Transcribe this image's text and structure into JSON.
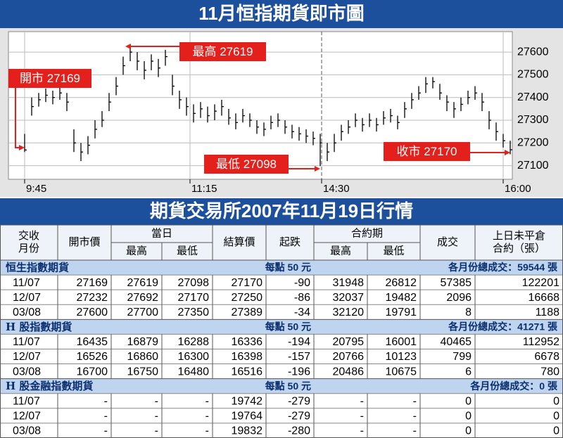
{
  "chart_data": {
    "type": "hlc",
    "title": "11月恒指期貨即市圖",
    "values": [
      27169,
      27360,
      27390,
      27410,
      27400,
      27420,
      27380,
      27200,
      27160,
      27190,
      27260,
      27300,
      27380,
      27450,
      27540,
      27600,
      27560,
      27520,
      27560,
      27530,
      27580,
      27450,
      27390,
      27360,
      27330,
      27350,
      27320,
      27340,
      27360,
      27310,
      27290,
      27320,
      27300,
      27270,
      27260,
      27290,
      27300,
      27270,
      27250,
      27240,
      27230,
      27220,
      27200,
      27160,
      27200,
      27250,
      27270,
      27300,
      27280,
      27300,
      27280,
      27310,
      27320,
      27290,
      27350,
      27390,
      27420,
      27460,
      27470,
      27420,
      27380,
      27350,
      27370,
      27400,
      27420,
      27380,
      27300,
      27250,
      27210,
      27170
    ],
    "high": [
      27240,
      27400,
      27420,
      27440,
      27430,
      27450,
      27420,
      27260,
      27200,
      27230,
      27300,
      27340,
      27420,
      27490,
      27580,
      27619,
      27600,
      27560,
      27590,
      27570,
      27610,
      27500,
      27430,
      27400,
      27370,
      27380,
      27360,
      27370,
      27390,
      27350,
      27330,
      27350,
      27330,
      27300,
      27290,
      27320,
      27330,
      27300,
      27280,
      27270,
      27260,
      27250,
      27240,
      27200,
      27240,
      27280,
      27300,
      27330,
      27310,
      27330,
      27310,
      27340,
      27350,
      27320,
      27380,
      27420,
      27450,
      27490,
      27490,
      27460,
      27410,
      27380,
      27400,
      27430,
      27450,
      27420,
      27340,
      27290,
      27240,
      27210
    ],
    "low": [
      27160,
      27320,
      27360,
      27380,
      27370,
      27390,
      27340,
      27160,
      27120,
      27150,
      27220,
      27270,
      27340,
      27410,
      27500,
      27560,
      27520,
      27480,
      27520,
      27490,
      27540,
      27410,
      27350,
      27320,
      27290,
      27310,
      27290,
      27300,
      27320,
      27280,
      27260,
      27290,
      27270,
      27240,
      27230,
      27260,
      27270,
      27240,
      27220,
      27210,
      27200,
      27190,
      27098,
      27120,
      27160,
      27210,
      27240,
      27270,
      27250,
      27270,
      27250,
      27280,
      27290,
      27260,
      27310,
      27350,
      27390,
      27420,
      27440,
      27390,
      27340,
      27310,
      27340,
      27370,
      27390,
      27340,
      27260,
      27210,
      27180,
      27150
    ],
    "color": "#000000",
    "ylim": [
      27040,
      27690
    ],
    "yticks": [
      27100,
      27200,
      27300,
      27400,
      27500,
      27600
    ],
    "xticks": [
      {
        "value": 0,
        "label": "9:45"
      },
      {
        "value": 23.5,
        "label": "11:15"
      },
      {
        "value": 42.2,
        "label": "14:30"
      },
      {
        "value": 68,
        "label": "16:00"
      }
    ],
    "grid": true,
    "annotations": [
      {
        "text": "開市 27169"
      },
      {
        "text": "最高 27619"
      },
      {
        "text": "最低 27098"
      },
      {
        "text": "收市 27170"
      }
    ]
  },
  "table": {
    "title": "期貨交易所2007年11月19日行情",
    "header": {
      "month": [
        "交收",
        "月份"
      ],
      "open": "開市價",
      "day": "當日",
      "day_high": "最高",
      "day_low": "最低",
      "settle": "結算價",
      "change": "起跌",
      "contract": "合約期",
      "c_high": "最高",
      "c_low": "最低",
      "volume": "成交",
      "oi": [
        "上日未平倉",
        "合約（張）"
      ]
    },
    "sections": [
      {
        "name": "恒生指數期貨",
        "per_point": "每點 50 元",
        "total": "各月份總成交：59544 張",
        "rows": [
          [
            "11/07",
            "27169",
            "27619",
            "27098",
            "27170",
            "-90",
            "31948",
            "26812",
            "57385",
            "122201"
          ],
          [
            "12/07",
            "27232",
            "27692",
            "27170",
            "27250",
            "-86",
            "32037",
            "19482",
            "2096",
            "16668"
          ],
          [
            "03/08",
            "27600",
            "27700",
            "27350",
            "27389",
            "-34",
            "32120",
            "19791",
            "8",
            "1188"
          ]
        ]
      },
      {
        "name": "H 股指數期貨",
        "per_point": "每點 50 元",
        "total": "各月份總成交：41271 張",
        "rows": [
          [
            "11/07",
            "16435",
            "16879",
            "16288",
            "16336",
            "-194",
            "20795",
            "16001",
            "40465",
            "112952"
          ],
          [
            "12/07",
            "16526",
            "16860",
            "16300",
            "16398",
            "-157",
            "20766",
            "10123",
            "799",
            "6678"
          ],
          [
            "03/08",
            "16700",
            "16750",
            "16480",
            "16516",
            "-196",
            "20486",
            "10675",
            "6",
            "780"
          ]
        ]
      },
      {
        "name": "H 股金融指數期貨",
        "per_point": "每點 50 元",
        "total": "各月份總成交：0 張",
        "rows": [
          [
            "11/07",
            "-",
            "-",
            "-",
            "19742",
            "-279",
            "-",
            "-",
            "0",
            "0"
          ],
          [
            "12/07",
            "-",
            "-",
            "-",
            "19764",
            "-279",
            "-",
            "-",
            "0",
            "0"
          ],
          [
            "03/08",
            "-",
            "-",
            "-",
            "19832",
            "-280",
            "-",
            "-",
            "0",
            "0"
          ]
        ]
      }
    ]
  }
}
